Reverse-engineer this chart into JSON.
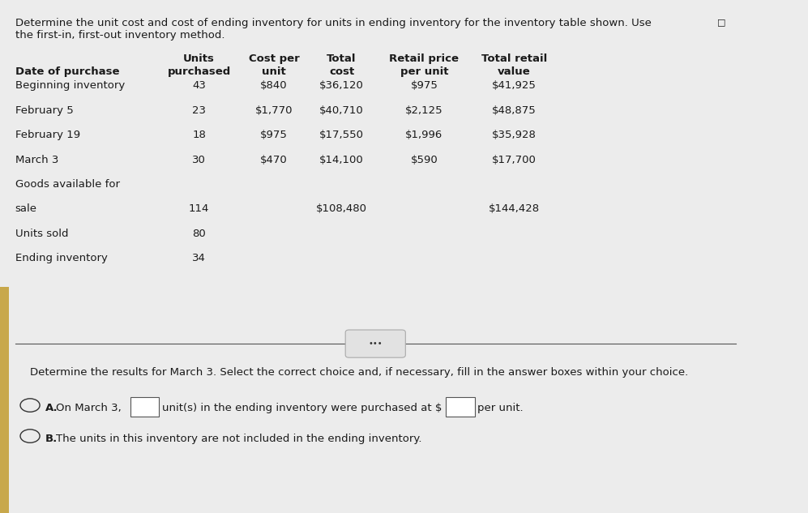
{
  "title_line1": "Determine the unit cost and cost of ending inventory for units in ending inventory for the inventory table shown. Use",
  "title_line2": "the first-in, first-out inventory method.",
  "col_headers_row1": [
    "Units",
    "Cost per",
    "Total",
    "Retail price",
    "Total retail"
  ],
  "col_headers_row2": [
    "Date of purchase",
    "purchased",
    "unit",
    "cost",
    "per unit",
    "value"
  ],
  "rows": [
    [
      "Beginning inventory",
      "43",
      "$840",
      "$36,120",
      "$975",
      "$41,925"
    ],
    [
      "February 5",
      "23",
      "$1,770",
      "$40,710",
      "$2,125",
      "$48,875"
    ],
    [
      "February 19",
      "18",
      "$975",
      "$17,550",
      "$1,996",
      "$35,928"
    ],
    [
      "March 3",
      "30",
      "$470",
      "$14,100",
      "$590",
      "$17,700"
    ],
    [
      "Goods available for",
      "",
      "",
      "",
      "",
      ""
    ],
    [
      "sale",
      "114",
      "",
      "$108,480",
      "",
      "$144,428"
    ],
    [
      "Units sold",
      "80",
      "",
      "",
      "",
      ""
    ],
    [
      "Ending inventory",
      "34",
      "",
      "",
      "",
      ""
    ]
  ],
  "question_line": "Determine the results for March 3. Select the correct choice and, if necessary, fill in the answer boxes within your choice.",
  "choice_A": "On March 3,",
  "choice_A_mid": "unit(s) in the ending inventory were purchased at $",
  "choice_A_end": "per unit.",
  "choice_B": "The units in this inventory are not included in the ending inventory.",
  "main_bg": "#ececec",
  "text_color": "#1a1a1a",
  "sep_color": "#555555",
  "gold_accent": "#c8a84b"
}
